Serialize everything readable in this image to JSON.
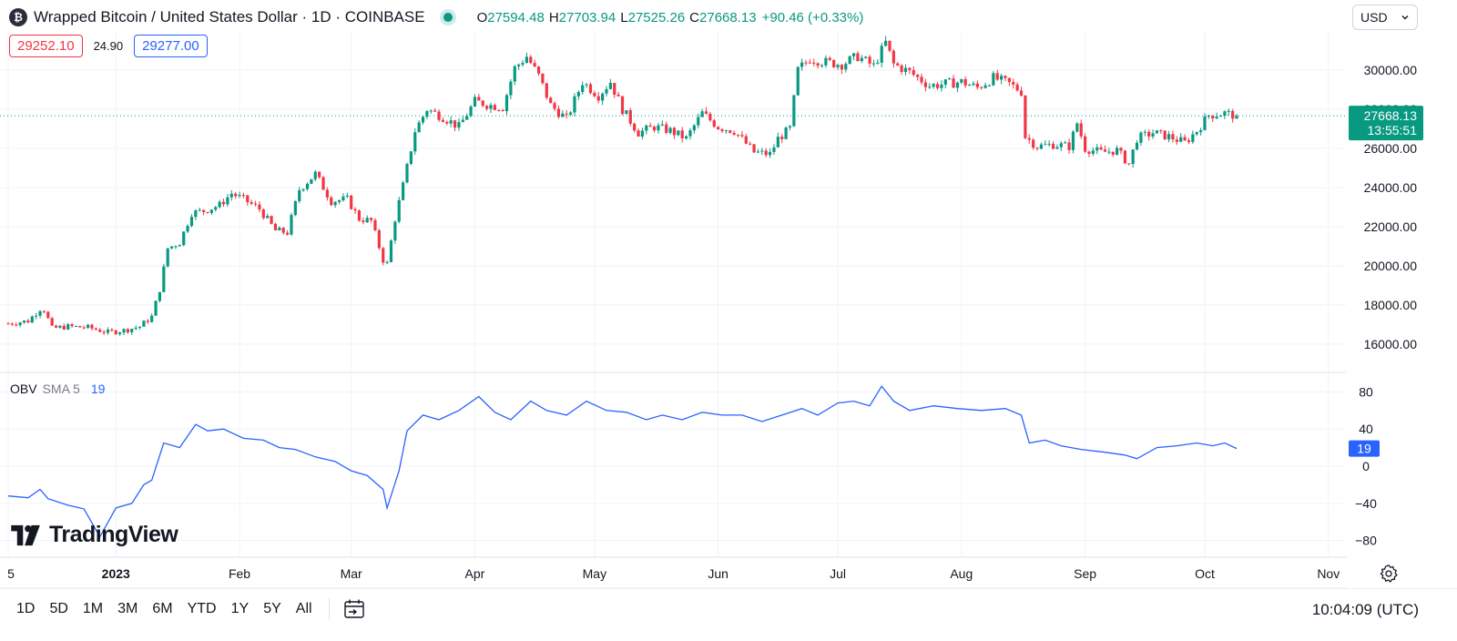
{
  "header": {
    "symbol_icon": "btc-logo-icon",
    "symbol_icon_glyph": "₿",
    "title": "Wrapped Bitcoin / United States Dollar · 1D · COINBASE",
    "ohlc": {
      "o_label": "O",
      "o": "27594.48",
      "h_label": "H",
      "h": "27703.94",
      "l_label": "L",
      "l": "27525.26",
      "c_label": "C",
      "c": "27668.13",
      "change": "+90.46 (+0.33%)"
    }
  },
  "bid_ask": {
    "sell": "29252.10",
    "spread": "24.90",
    "buy": "29277.00"
  },
  "currency": {
    "value": "USD",
    "icon": "chevron-down-icon"
  },
  "price_axis_labels": [
    "30000.00",
    "28000.00",
    "26000.00",
    "24000.00",
    "22000.00",
    "20000.00",
    "18000.00",
    "16000.00"
  ],
  "last_price": {
    "value": "27668.13",
    "countdown": "13:55:51"
  },
  "obv_legend": {
    "name": "OBV",
    "sma": "SMA 5",
    "value": "19"
  },
  "obv_axis_labels": [
    "80",
    "40",
    "0",
    "−40",
    "−80"
  ],
  "obv_last": "19",
  "time_axis_labels": [
    "5",
    "2023",
    "Feb",
    "Mar",
    "Apr",
    "May",
    "Jun",
    "Jul",
    "Aug",
    "Sep",
    "Oct",
    "Nov"
  ],
  "logo": {
    "text": "TradingView"
  },
  "bottom_bar": {
    "timeframes": [
      "1D",
      "5D",
      "1M",
      "3M",
      "6M",
      "YTD",
      "1Y",
      "5Y",
      "All"
    ],
    "goto_icon": "calendar-range-icon",
    "clock": "10:04:09 (UTC)"
  },
  "colors": {
    "up": "#089981",
    "down": "#f23645",
    "obv": "#2962ff",
    "grid": "#f0f3fa"
  },
  "chart_data": [
    {
      "type": "candlestick",
      "ylim": [
        14600,
        32000
      ],
      "series_points": [
        [
          "2022-12-05",
          17050
        ],
        [
          "2022-12-10",
          17180
        ],
        [
          "2022-12-13",
          17800
        ],
        [
          "2022-12-14",
          17750
        ],
        [
          "2022-12-16",
          16800
        ],
        [
          "2022-12-20",
          16900
        ],
        [
          "2022-12-25",
          16850
        ],
        [
          "2022-12-30",
          16600
        ],
        [
          "2023-01-03",
          16700
        ],
        [
          "2023-01-07",
          16900
        ],
        [
          "2023-01-10",
          17400
        ],
        [
          "2023-01-12",
          18800
        ],
        [
          "2023-01-14",
          20900
        ],
        [
          "2023-01-17",
          21200
        ],
        [
          "2023-01-20",
          22700
        ],
        [
          "2023-01-23",
          22800
        ],
        [
          "2023-01-27",
          23100
        ],
        [
          "2023-01-30",
          23700
        ],
        [
          "2023-02-02",
          23400
        ],
        [
          "2023-02-06",
          22900
        ],
        [
          "2023-02-10",
          21800
        ],
        [
          "2023-02-13",
          21700
        ],
        [
          "2023-02-16",
          23900
        ],
        [
          "2023-02-20",
          24700
        ],
        [
          "2023-02-24",
          23300
        ],
        [
          "2023-02-28",
          23400
        ],
        [
          "2023-03-03",
          22400
        ],
        [
          "2023-03-06",
          22300
        ],
        [
          "2023-03-09",
          20300
        ],
        [
          "2023-03-10",
          20100
        ],
        [
          "2023-03-12",
          22400
        ],
        [
          "2023-03-14",
          24100
        ],
        [
          "2023-03-17",
          26900
        ],
        [
          "2023-03-20",
          28000
        ],
        [
          "2023-03-24",
          27600
        ],
        [
          "2023-03-28",
          27100
        ],
        [
          "2023-04-01",
          28400
        ],
        [
          "2023-04-05",
          28200
        ],
        [
          "2023-04-08",
          28100
        ],
        [
          "2023-04-11",
          30100
        ],
        [
          "2023-04-14",
          30700
        ],
        [
          "2023-04-17",
          29700
        ],
        [
          "2023-04-20",
          28200
        ],
        [
          "2023-04-24",
          27500
        ],
        [
          "2023-04-28",
          29400
        ],
        [
          "2023-05-02",
          28700
        ],
        [
          "2023-05-05",
          29400
        ],
        [
          "2023-05-08",
          28000
        ],
        [
          "2023-05-12",
          26800
        ],
        [
          "2023-05-16",
          27100
        ],
        [
          "2023-05-20",
          26900
        ],
        [
          "2023-05-24",
          26500
        ],
        [
          "2023-05-28",
          27800
        ],
        [
          "2023-06-01",
          27100
        ],
        [
          "2023-06-05",
          26900
        ],
        [
          "2023-06-10",
          25800
        ],
        [
          "2023-06-14",
          25700
        ],
        [
          "2023-06-16",
          26500
        ],
        [
          "2023-06-19",
          27000
        ],
        [
          "2023-06-21",
          30000
        ],
        [
          "2023-06-24",
          30600
        ],
        [
          "2023-06-28",
          30400
        ],
        [
          "2023-07-02",
          30300
        ],
        [
          "2023-07-06",
          30700
        ],
        [
          "2023-07-10",
          30200
        ],
        [
          "2023-07-13",
          31400
        ],
        [
          "2023-07-15",
          30300
        ],
        [
          "2023-07-19",
          29900
        ],
        [
          "2023-07-24",
          29200
        ],
        [
          "2023-07-28",
          29300
        ],
        [
          "2023-08-01",
          29400
        ],
        [
          "2023-08-05",
          29100
        ],
        [
          "2023-08-09",
          29600
        ],
        [
          "2023-08-13",
          29300
        ],
        [
          "2023-08-16",
          28900
        ],
        [
          "2023-08-17",
          26600
        ],
        [
          "2023-08-20",
          26100
        ],
        [
          "2023-08-24",
          26200
        ],
        [
          "2023-08-28",
          26100
        ],
        [
          "2023-08-30",
          27300
        ],
        [
          "2023-09-01",
          26000
        ],
        [
          "2023-09-05",
          25800
        ],
        [
          "2023-09-09",
          25900
        ],
        [
          "2023-09-12",
          25200
        ],
        [
          "2023-09-14",
          26500
        ],
        [
          "2023-09-18",
          26800
        ],
        [
          "2023-09-22",
          26600
        ],
        [
          "2023-09-26",
          26300
        ],
        [
          "2023-09-29",
          26900
        ],
        [
          "2023-10-02",
          27700
        ],
        [
          "2023-10-06",
          27800
        ],
        [
          "2023-10-09",
          27668
        ]
      ]
    },
    {
      "type": "line",
      "name": "OBV",
      "ylim": [
        -98,
        98
      ],
      "series_points": [
        [
          "2022-12-05",
          -32
        ],
        [
          "2022-12-10",
          -34
        ],
        [
          "2022-12-13",
          -25
        ],
        [
          "2022-12-15",
          -35
        ],
        [
          "2022-12-20",
          -42
        ],
        [
          "2022-12-24",
          -46
        ],
        [
          "2022-12-28",
          -76
        ],
        [
          "2023-01-01",
          -45
        ],
        [
          "2023-01-05",
          -40
        ],
        [
          "2023-01-08",
          -20
        ],
        [
          "2023-01-10",
          -15
        ],
        [
          "2023-01-13",
          25
        ],
        [
          "2023-01-17",
          20
        ],
        [
          "2023-01-21",
          45
        ],
        [
          "2023-01-24",
          38
        ],
        [
          "2023-01-28",
          40
        ],
        [
          "2023-02-02",
          30
        ],
        [
          "2023-02-07",
          28
        ],
        [
          "2023-02-11",
          20
        ],
        [
          "2023-02-15",
          18
        ],
        [
          "2023-02-20",
          10
        ],
        [
          "2023-02-25",
          5
        ],
        [
          "2023-03-01",
          -5
        ],
        [
          "2023-03-05",
          -10
        ],
        [
          "2023-03-09",
          -25
        ],
        [
          "2023-03-10",
          -45
        ],
        [
          "2023-03-13",
          -5
        ],
        [
          "2023-03-15",
          38
        ],
        [
          "2023-03-19",
          55
        ],
        [
          "2023-03-23",
          50
        ],
        [
          "2023-03-28",
          60
        ],
        [
          "2023-04-02",
          75
        ],
        [
          "2023-04-06",
          58
        ],
        [
          "2023-04-10",
          50
        ],
        [
          "2023-04-15",
          70
        ],
        [
          "2023-04-19",
          60
        ],
        [
          "2023-04-24",
          55
        ],
        [
          "2023-04-29",
          70
        ],
        [
          "2023-05-04",
          60
        ],
        [
          "2023-05-09",
          58
        ],
        [
          "2023-05-14",
          50
        ],
        [
          "2023-05-18",
          55
        ],
        [
          "2023-05-23",
          50
        ],
        [
          "2023-05-28",
          58
        ],
        [
          "2023-06-02",
          55
        ],
        [
          "2023-06-07",
          55
        ],
        [
          "2023-06-12",
          48
        ],
        [
          "2023-06-17",
          55
        ],
        [
          "2023-06-22",
          62
        ],
        [
          "2023-06-26",
          55
        ],
        [
          "2023-07-01",
          68
        ],
        [
          "2023-07-05",
          70
        ],
        [
          "2023-07-09",
          65
        ],
        [
          "2023-07-12",
          86
        ],
        [
          "2023-07-15",
          70
        ],
        [
          "2023-07-19",
          60
        ],
        [
          "2023-07-25",
          65
        ],
        [
          "2023-07-31",
          62
        ],
        [
          "2023-08-06",
          60
        ],
        [
          "2023-08-12",
          62
        ],
        [
          "2023-08-16",
          55
        ],
        [
          "2023-08-18",
          25
        ],
        [
          "2023-08-22",
          28
        ],
        [
          "2023-08-26",
          22
        ],
        [
          "2023-08-31",
          18
        ],
        [
          "2023-09-06",
          15
        ],
        [
          "2023-09-11",
          12
        ],
        [
          "2023-09-14",
          8
        ],
        [
          "2023-09-19",
          20
        ],
        [
          "2023-09-24",
          22
        ],
        [
          "2023-09-29",
          25
        ],
        [
          "2023-10-03",
          22
        ],
        [
          "2023-10-06",
          25
        ],
        [
          "2023-10-09",
          19
        ]
      ]
    }
  ]
}
